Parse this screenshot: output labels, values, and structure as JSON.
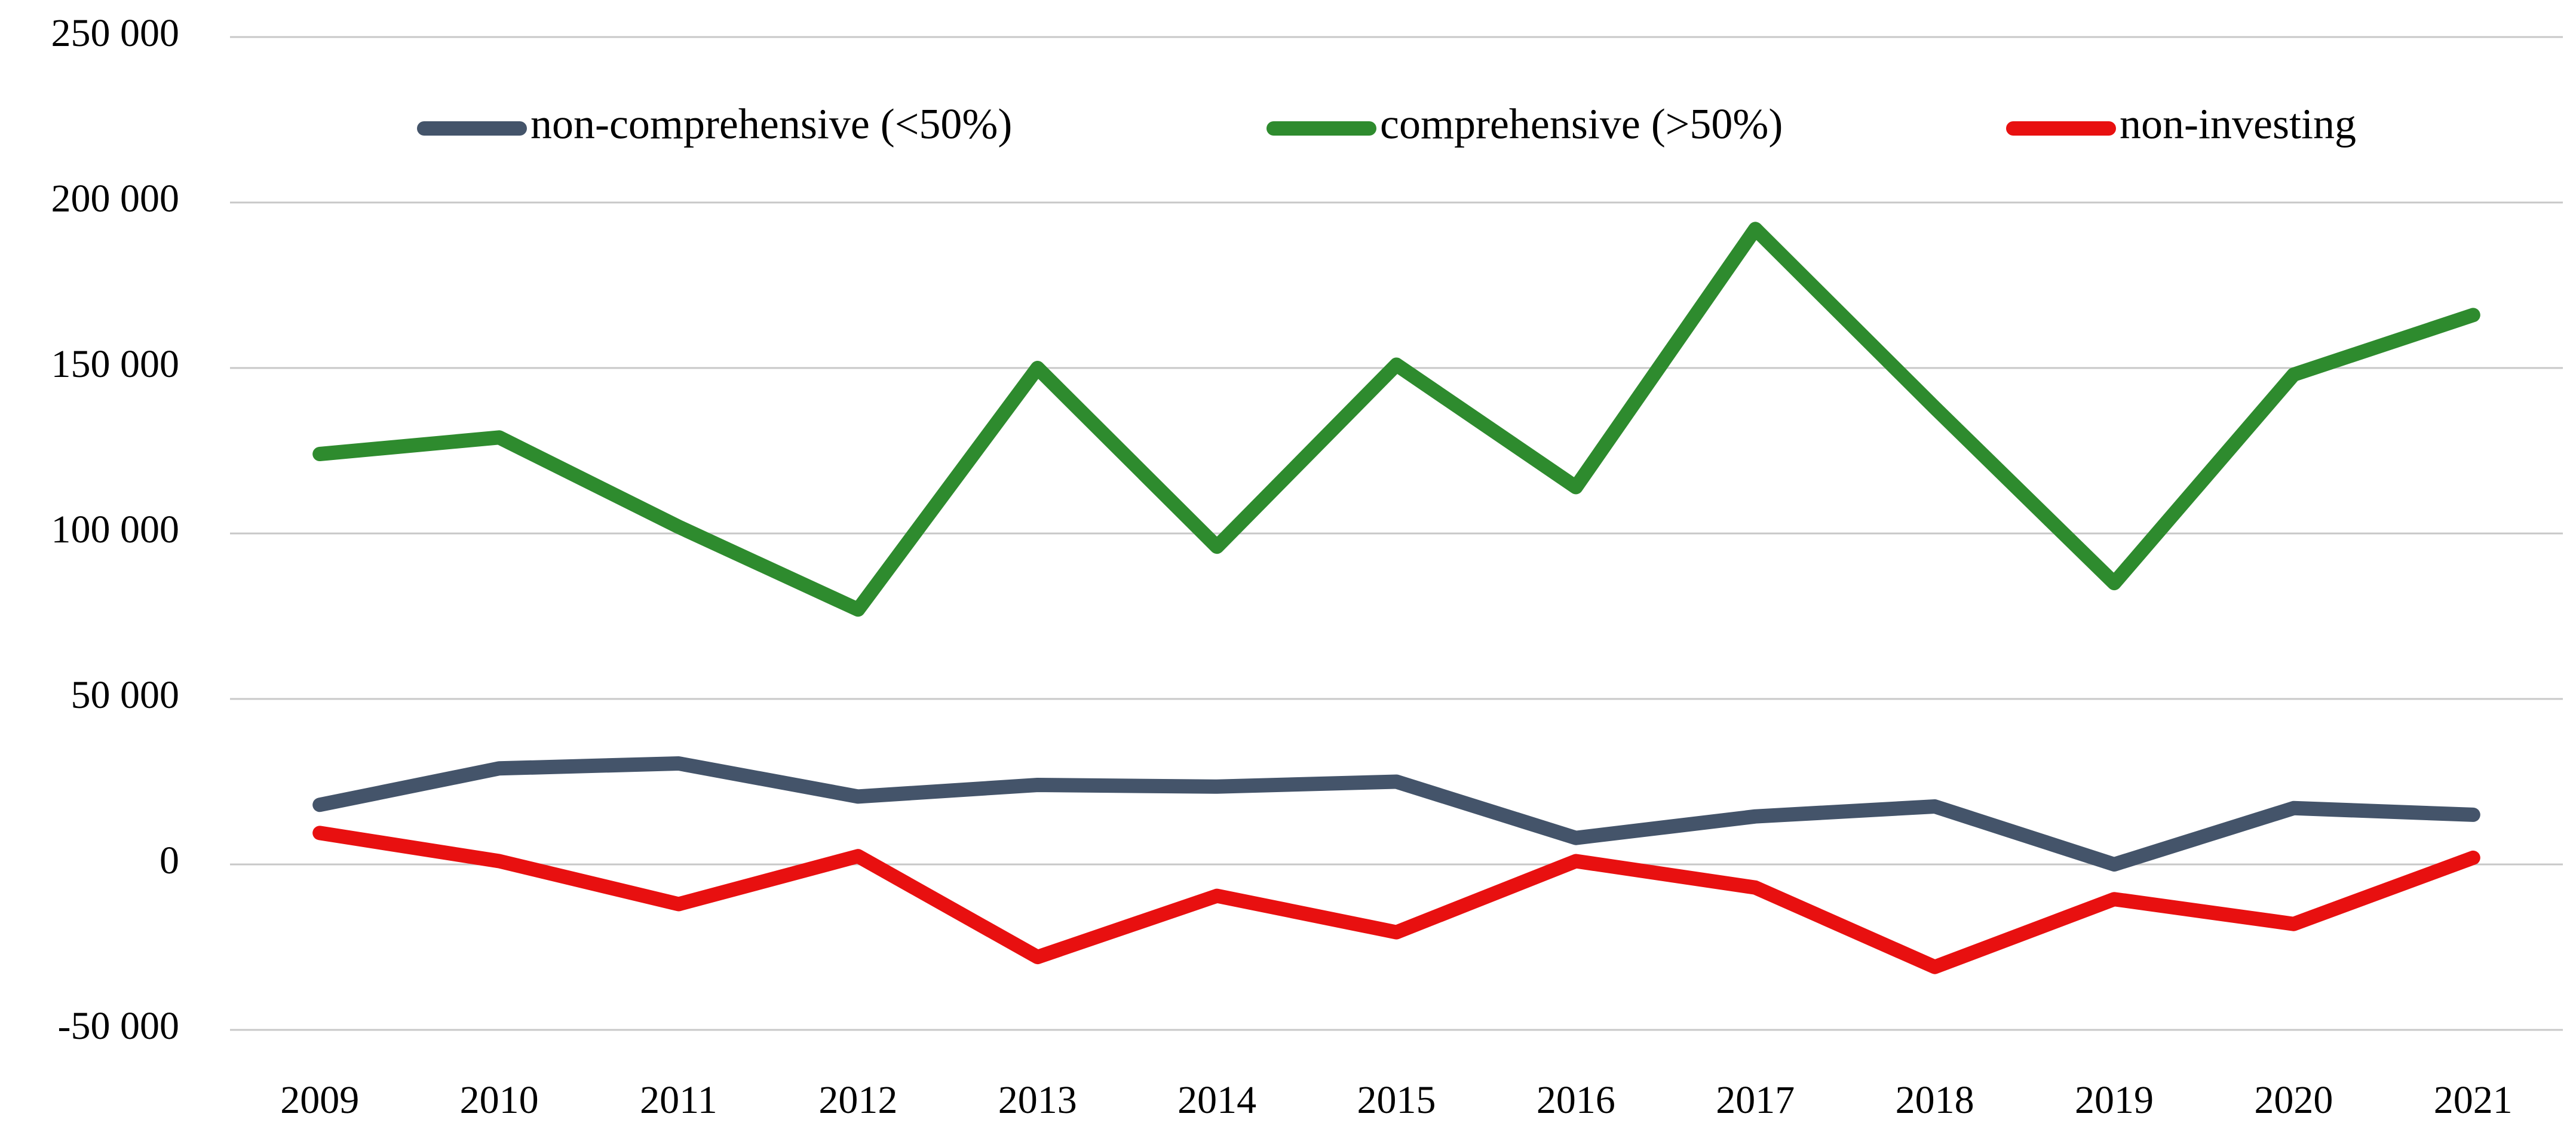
{
  "chart_data": {
    "type": "line",
    "title": "",
    "xlabel": "",
    "ylabel": "",
    "ylim": [
      -50000,
      250000
    ],
    "yticks": [
      250000,
      200000,
      150000,
      100000,
      50000,
      0,
      -50000
    ],
    "ytick_labels": [
      "250 000",
      "200 000",
      "150 000",
      "100 000",
      "50 000",
      "0",
      "-50 000"
    ],
    "categories": [
      "2009",
      "2010",
      "2011",
      "2012",
      "2013",
      "2014",
      "2015",
      "2016",
      "2017",
      "2018",
      "2019",
      "2020",
      "2021"
    ],
    "grid": true,
    "legend_position": "top",
    "series": [
      {
        "name": "non-comprehensive (<50%)",
        "color": "#44546a",
        "values": [
          18000,
          29000,
          30500,
          20500,
          24000,
          23500,
          25000,
          8000,
          14500,
          17500,
          0,
          17000,
          15000
        ]
      },
      {
        "name": "comprehensive (>50%)",
        "color": "#2e8b2e",
        "values": [
          124000,
          129000,
          102000,
          77000,
          150000,
          96000,
          151000,
          114000,
          192000,
          138000,
          85000,
          148000,
          166000
        ]
      },
      {
        "name": "non-investing",
        "color": "#e81010",
        "values": [
          9500,
          1000,
          -12000,
          2500,
          -28000,
          -9500,
          -20500,
          1000,
          -7000,
          -31000,
          -10500,
          -18000,
          2000
        ]
      }
    ]
  }
}
